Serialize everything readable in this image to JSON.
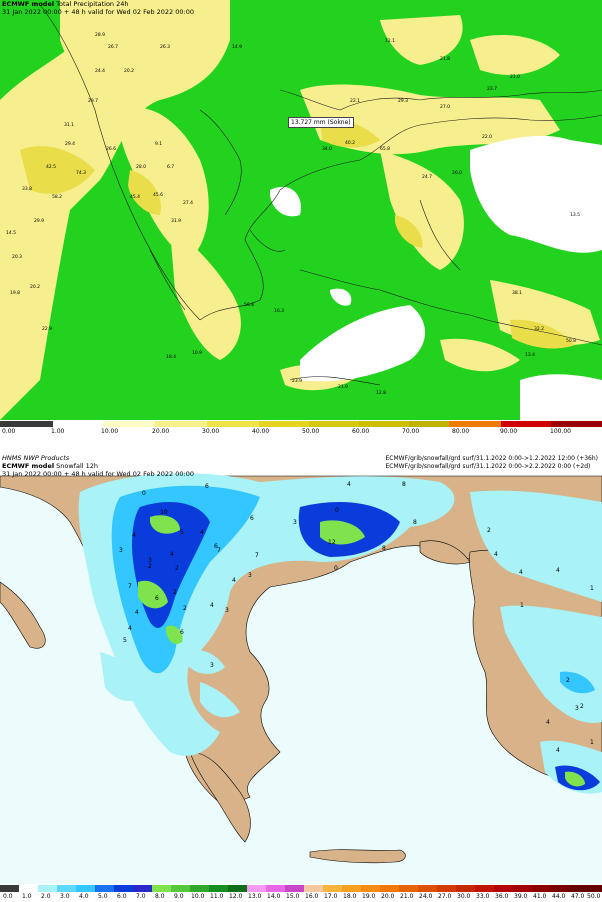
{
  "top_panel": {
    "model": "ECMWF model",
    "product": "Total Precipitation 24h",
    "validity": "31 Jan 2022 00:00 + 48 h valid for Wed 02 Feb 2022 00:00",
    "annotation": "13.727 mm (Sokne)",
    "colorbar_labels": [
      "0.00",
      "1.00",
      "10.00",
      "20.00",
      "30.00",
      "40.00",
      "50.00",
      "60.00",
      "70.00",
      "80.00",
      "90.00",
      "100.00"
    ],
    "colors": {
      "land_green": "#22d21e",
      "light_yellow": "#f7ee8e",
      "yellow": "#e9de4a",
      "white": "#ffffff"
    },
    "map_values": [
      "28.9",
      "26.7",
      "26.3",
      "14.9",
      "12.1",
      "24.4",
      "20.2",
      "21.8",
      "21.0",
      "29.7",
      "22.1",
      "29.3",
      "27.0",
      "23.7",
      "31.1",
      "29.4",
      "26.6",
      "28.0",
      "9.1",
      "6.7",
      "34.0",
      "40.2",
      "65.8",
      "26.0",
      "22.0",
      "42.5",
      "74.3",
      "45.6",
      "27.4",
      "24.7",
      "33.8",
      "58.2",
      "45.4",
      "31.9",
      "29.9",
      "13.5",
      "14.5",
      "20.3",
      "19.8",
      "20.2",
      "56.8",
      "16.3",
      "22.9",
      "18.4",
      "10.9",
      "38.1",
      "32.2",
      "50.8",
      "23.9",
      "21.9",
      "12.8",
      "13.4"
    ]
  },
  "bottom_panel": {
    "source": "HNMS NWP Products",
    "model": "ECMWF model",
    "product": "Snowfall 12h",
    "validity": "31 Jan 2022 00:00 + 48 h valid for Wed 02 Feb 2022 00:00",
    "file_lines": [
      "ECMWF/grib/snowfall/grd surf/31.1.2022 0:00->1.2.2022 12:00 (+36h)",
      "ECMWF/grib/snowfall/grd surf/31.1.2022 0:00->2.2.2022 0:00 (+2d)"
    ],
    "colorbar_labels": [
      "0.0",
      "1.0",
      "2.0",
      "3.0",
      "4.0",
      "5.0",
      "6.0",
      "7.0",
      "8.0",
      "9.0",
      "10.0",
      "11.0",
      "12.0",
      "13.0",
      "14.0",
      "15.0",
      "16.0",
      "17.0",
      "18.0",
      "19.0",
      "20.0",
      "21.0",
      "24.0",
      "27.0",
      "30.0",
      "33.0",
      "36.0",
      "39.0",
      "41.0",
      "44.0",
      "47.0",
      "50.0"
    ],
    "colors": {
      "sea": "#ecfbfb",
      "land": "#d8b389",
      "snow_light": "#a8f2f8",
      "snow_mid": "#33c6ff",
      "snow_dark": "#0a3cdc",
      "snow_green": "#7ee34c"
    },
    "map_values": [
      "0",
      "6",
      "6",
      "10",
      "5",
      "4",
      "0",
      "4",
      "3",
      "8",
      "4",
      "3",
      "4",
      "6",
      "7",
      "4",
      "3",
      "8",
      "12",
      "0",
      "8",
      "6",
      "2",
      "7",
      "2",
      "4",
      "2",
      "6",
      "4",
      "2",
      "3",
      "4",
      "7",
      "3",
      "3",
      "5",
      "2",
      "4",
      "4",
      "4",
      "1",
      "1",
      "2",
      "2",
      "3",
      "4",
      "1",
      "4"
    ]
  }
}
